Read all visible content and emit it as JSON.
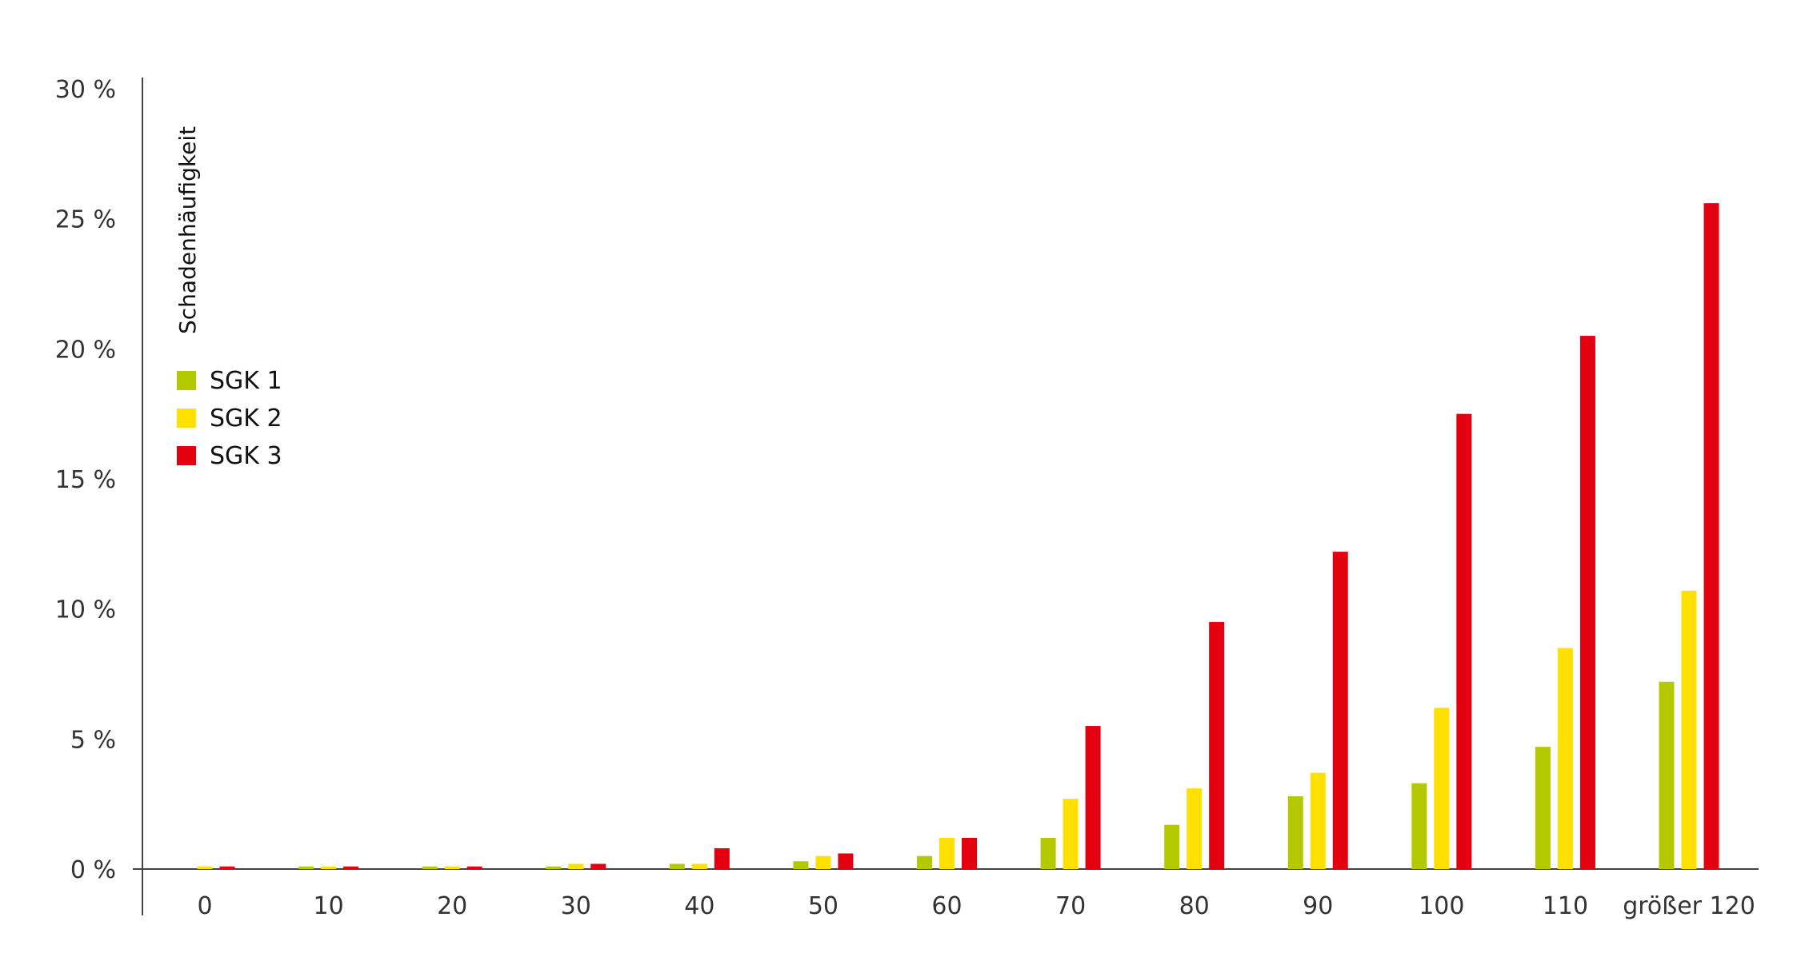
{
  "chart_data": {
    "type": "bar",
    "ylabel": "Schadenhäufigkeit",
    "xlabel": "",
    "ylim": [
      0,
      30
    ],
    "yticks": [
      {
        "value": 0,
        "label": "0 %"
      },
      {
        "value": 5,
        "label": "5 %"
      },
      {
        "value": 10,
        "label": "10 %"
      },
      {
        "value": 15,
        "label": "15 %"
      },
      {
        "value": 20,
        "label": "20 %"
      },
      {
        "value": 25,
        "label": "25 %"
      },
      {
        "value": 30,
        "label": "30 %"
      }
    ],
    "categories": [
      "0",
      "10",
      "20",
      "30",
      "40",
      "50",
      "60",
      "70",
      "80",
      "90",
      "100",
      "110",
      "größer 120"
    ],
    "series": [
      {
        "name": "SGK 1",
        "color": "#b5c900",
        "values": [
          0.0,
          0.1,
          0.1,
          0.1,
          0.2,
          0.3,
          0.5,
          1.2,
          1.7,
          2.8,
          3.3,
          4.7,
          7.2
        ]
      },
      {
        "name": "SGK 2",
        "color": "#ffe000",
        "values": [
          0.1,
          0.1,
          0.1,
          0.2,
          0.2,
          0.5,
          1.2,
          2.7,
          3.1,
          3.7,
          6.2,
          8.5,
          10.7
        ]
      },
      {
        "name": "SGK 3",
        "color": "#e3000f",
        "values": [
          0.1,
          0.1,
          0.1,
          0.2,
          0.8,
          0.6,
          1.2,
          5.5,
          9.5,
          12.2,
          17.5,
          20.5,
          25.6
        ]
      }
    ],
    "grid": false,
    "legend_position": "top-left"
  }
}
